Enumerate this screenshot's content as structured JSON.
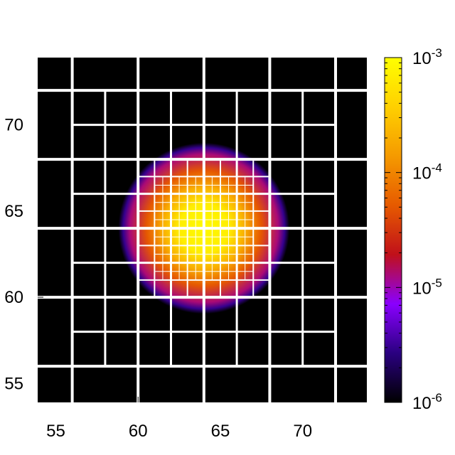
{
  "chart_data": {
    "type": "heatmap",
    "title": "",
    "xlabel": "",
    "ylabel": "",
    "xlim": [
      53.9,
      73.9
    ],
    "ylim": [
      53.9,
      73.9
    ],
    "x_ticks": [
      55,
      60,
      65,
      70
    ],
    "y_ticks": [
      55,
      60,
      65,
      70
    ],
    "x_tick_labels": [
      "55",
      "60",
      "65",
      "70"
    ],
    "y_tick_labels": [
      "55",
      "60",
      "65",
      "70"
    ],
    "colorbar": {
      "scale": "log",
      "range": [
        1e-06,
        0.001
      ],
      "ticks": [
        {
          "value": 1e-06,
          "base": "10",
          "exp": "-6"
        },
        {
          "value": 1e-05,
          "base": "10",
          "exp": "-5"
        },
        {
          "value": 0.0001,
          "base": "10",
          "exp": "-4"
        },
        {
          "value": 0.001,
          "base": "10",
          "exp": "-3"
        }
      ],
      "colormap": [
        "#000000",
        "#2a0080",
        "#8a00ff",
        "#c0101a",
        "#e65a00",
        "#f59a00",
        "#ffd000",
        "#ffff00"
      ]
    },
    "field": {
      "center": [
        64,
        64
      ],
      "peak_value": 0.0009,
      "value_at_radius": [
        {
          "r": 0,
          "value": 0.0009
        },
        {
          "r": 1.5,
          "value": 0.0007
        },
        {
          "r": 2.5,
          "value": 0.0002
        },
        {
          "r": 3.5,
          "value": 5e-05
        },
        {
          "r": 4.5,
          "value": 1.3e-05
        },
        {
          "r": 4.9,
          "value": 3e-06
        },
        {
          "r": 5.2,
          "value": 1e-06
        }
      ]
    },
    "mesh": {
      "boxes": [
        {
          "x0": 53.9,
          "x1": 73.9,
          "y0": 53.9,
          "y1": 73.9,
          "spacing": 4
        },
        {
          "x0": 56,
          "x1": 72,
          "y0": 56,
          "y1": 72,
          "spacing": 2
        },
        {
          "x0": 60,
          "x1": 68,
          "y0": 60,
          "y1": 68,
          "spacing": 1
        },
        {
          "x0": 61,
          "x1": 67,
          "y0": 61,
          "y1": 67,
          "spacing": 0.5
        }
      ],
      "color": "#ffffff"
    }
  }
}
